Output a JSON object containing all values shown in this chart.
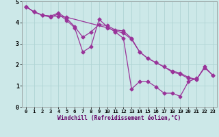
{
  "line1_x": [
    0,
    1,
    2,
    3,
    4,
    5,
    10,
    11,
    12,
    13,
    14,
    15,
    16,
    17,
    18,
    19,
    20,
    21,
    22,
    23
  ],
  "line1_y": [
    4.75,
    4.5,
    4.35,
    4.3,
    4.3,
    4.25,
    3.75,
    3.6,
    3.5,
    3.2,
    2.6,
    2.3,
    2.1,
    1.9,
    1.7,
    1.6,
    1.4,
    1.3,
    1.9,
    1.5
  ],
  "line2_x": [
    0,
    1,
    2,
    3,
    4,
    5,
    6,
    7,
    8,
    9,
    10,
    11,
    12,
    13,
    14,
    15,
    16,
    17,
    18,
    19,
    20,
    21
  ],
  "line2_y": [
    4.75,
    4.5,
    4.35,
    4.25,
    4.4,
    4.1,
    3.75,
    2.6,
    2.85,
    4.15,
    3.8,
    3.55,
    3.25,
    0.85,
    1.2,
    1.2,
    0.95,
    0.65,
    0.65,
    0.5,
    1.2,
    1.35
  ],
  "line3_x": [
    0,
    1,
    2,
    3,
    4,
    5,
    6,
    7,
    8,
    9,
    10,
    11,
    12,
    13,
    14,
    15,
    16,
    17,
    18,
    19,
    20,
    21,
    22,
    23
  ],
  "line3_y": [
    4.75,
    4.5,
    4.35,
    4.3,
    4.45,
    4.2,
    3.8,
    3.3,
    3.55,
    3.9,
    3.85,
    3.65,
    3.6,
    3.25,
    2.6,
    2.3,
    2.1,
    1.9,
    1.65,
    1.55,
    1.35,
    1.3,
    1.85,
    1.5
  ],
  "color": "#993399",
  "bg_color": "#cce8e8",
  "xlabel": "Windchill (Refroidissement éolien,°C)",
  "ylim": [
    0,
    5
  ],
  "xlim": [
    -0.5,
    23.5
  ],
  "yticks": [
    0,
    1,
    2,
    3,
    4,
    5
  ],
  "xticks": [
    0,
    1,
    2,
    3,
    4,
    5,
    6,
    7,
    8,
    9,
    10,
    11,
    12,
    13,
    14,
    15,
    16,
    17,
    18,
    19,
    20,
    21,
    22,
    23
  ],
  "grid_color": "#b0d4d4",
  "marker": "D",
  "markersize": 2.5,
  "linewidth": 0.9
}
